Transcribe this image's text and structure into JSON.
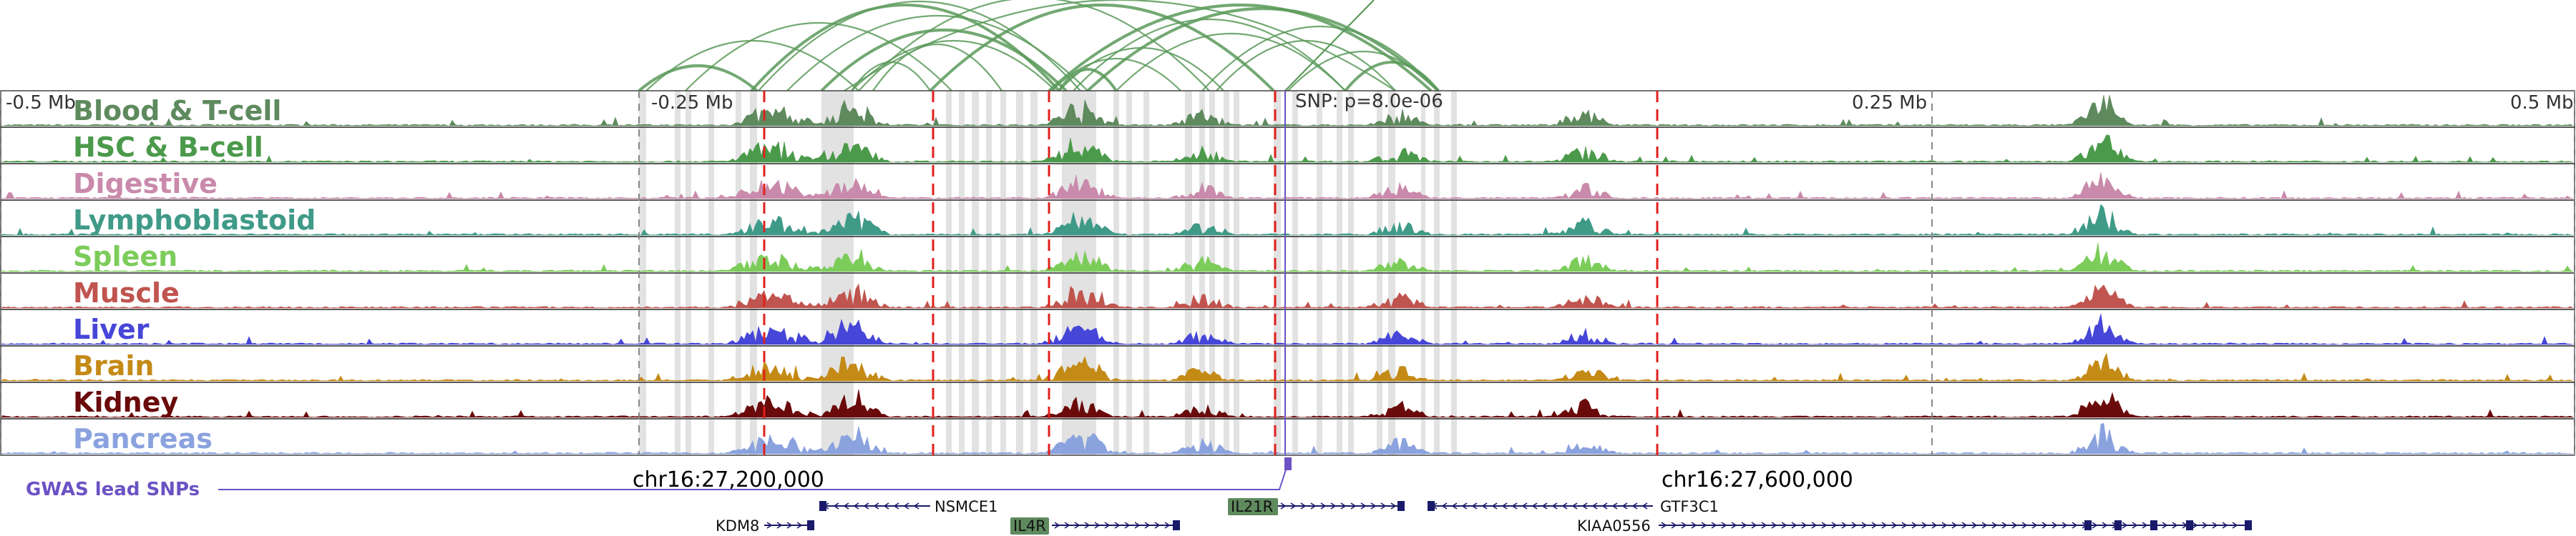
{
  "axis": {
    "tick_labels": [
      "-0.5 Mb",
      "-0.25 Mb",
      "0.25 Mb",
      "0.5 Mb"
    ],
    "snp_label": "SNP: p=8.0e-06"
  },
  "tracks": [
    {
      "label": "Blood & T-cell",
      "color": "#5e8a5e"
    },
    {
      "label": "HSC & B-cell",
      "color": "#4b9a4b"
    },
    {
      "label": "Digestive",
      "color": "#c98aab"
    },
    {
      "label": "Lymphoblastoid",
      "color": "#3f9a88"
    },
    {
      "label": "Spleen",
      "color": "#7ccc5a"
    },
    {
      "label": "Muscle",
      "color": "#c0544e"
    },
    {
      "label": "Liver",
      "color": "#4646d8"
    },
    {
      "label": "Brain",
      "color": "#c48a16"
    },
    {
      "label": "Kidney",
      "color": "#6a0a0a"
    },
    {
      "label": "Pancreas",
      "color": "#8aa2de"
    }
  ],
  "coordinates": {
    "left": "chr16:27,200,000",
    "right": "chr16:27,600,000"
  },
  "gwas": {
    "label": "GWAS lead SNPs",
    "color": "#6a52c4"
  },
  "genes": [
    {
      "name": "NSMCE1",
      "highlighted": false
    },
    {
      "name": "KDM8",
      "highlighted": false
    },
    {
      "name": "IL4R",
      "highlighted": true
    },
    {
      "name": "IL21R",
      "highlighted": true
    },
    {
      "name": "GTF3C1",
      "highlighted": false
    },
    {
      "name": "KIAA0556",
      "highlighted": false
    }
  ],
  "colors": {
    "loop_arcs": "#5a9a5a",
    "enhancer_shading": "#cfcfcf",
    "snp_marker_lines": "#e0201c",
    "gene_strand": "#1a1a6a",
    "highlight_gene_box": "#5e8a5e"
  }
}
